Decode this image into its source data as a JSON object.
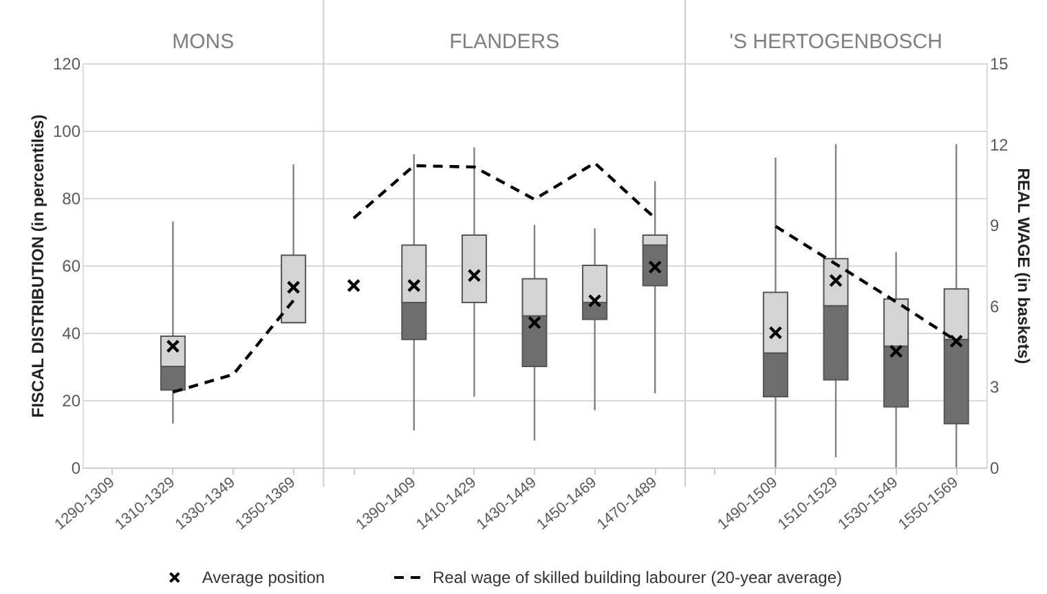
{
  "chart_data": {
    "type": "box",
    "annotations": [
      "MONS",
      "FLANDERS",
      "'S HERTOGENBOSCH"
    ],
    "categories": [
      "1290-1309",
      "1310-1329",
      "1330-1349",
      "1350-1369",
      null,
      "1390-1409",
      "1410-1429",
      "1430-1449",
      "1450-1469",
      "1470-1489",
      null,
      "1490-1509",
      "1510-1529",
      "1530-1549",
      "1550-1569"
    ],
    "series": [
      {
        "colors": [
          null,
          [
            "#6e6e6e",
            "#d4d4d4"
          ],
          null,
          [
            "#6e6e6e",
            "#d4d4d4"
          ],
          null,
          [
            "#6e6e6e",
            "#d4d4d4"
          ],
          [
            "#6e6e6e",
            "#d4d4d4"
          ],
          [
            "#6e6e6e",
            "#d4d4d4"
          ],
          [
            "#6e6e6e",
            "#d4d4d4"
          ],
          [
            "#6e6e6e",
            "#d4d4d4"
          ],
          null,
          [
            "#6e6e6e",
            "#d4d4d4"
          ],
          [
            "#6e6e6e",
            "#d4d4d4"
          ],
          [
            "#6e6e6e",
            "#d4d4d4"
          ],
          [
            "#6e6e6e",
            "#d4d4d4"
          ]
        ],
        "boxes": [
          null,
          {
            "low": 13,
            "q1": 23,
            "median": 30,
            "q3": 39,
            "high": 73
          },
          null,
          {
            "low": 43,
            "q1": 43,
            "median": 43,
            "q3": 63,
            "high": 90
          },
          null,
          {
            "low": 11,
            "q1": 38,
            "median": 49,
            "q3": 66,
            "high": 93
          },
          {
            "low": 21,
            "q1": 49,
            "median": 49,
            "q3": 69,
            "high": 95
          },
          {
            "low": 8,
            "q1": 30,
            "median": 45,
            "q3": 56,
            "high": 72
          },
          {
            "low": 17,
            "q1": 44,
            "median": 49,
            "q3": 60,
            "high": 71
          },
          {
            "low": 22,
            "q1": 54,
            "median": 66,
            "q3": 69,
            "high": 85
          },
          null,
          {
            "low": 0,
            "q1": 21,
            "median": 34,
            "q3": 52,
            "high": 92
          },
          {
            "low": 3,
            "q1": 26,
            "median": 48,
            "q3": 62,
            "high": 96
          },
          {
            "low": 0,
            "q1": 18,
            "median": 36,
            "q3": 50,
            "high": 64
          },
          {
            "low": 0,
            "q1": 13,
            "median": 38,
            "q3": 53,
            "high": 96
          }
        ]
      },
      {
        "type": "scatter",
        "name": "Average position",
        "color": "#000000",
        "marker": "cross",
        "values": [
          null,
          36,
          null,
          53.5,
          54,
          54,
          57,
          43,
          49.5,
          59.5,
          null,
          40,
          55.5,
          34.5,
          37.5
        ]
      },
      {
        "type": "line",
        "name": "Real wage of skilled building labourer (20-year average)",
        "color": "#000000",
        "axis": "y2",
        "line_style": "dashed",
        "values": [
          null,
          2.8,
          3.45,
          6.2,
          9.25,
          11.2,
          11.15,
          9.95,
          11.3,
          9.25,
          null,
          8.95,
          7.55,
          6.15,
          4.7
        ]
      }
    ],
    "ylabel": "FISCAL DISTRIBUTION (in percentiles)",
    "y2label": "REAL WAGE (in baskets)",
    "ylim": [
      0,
      120
    ],
    "yticks": [
      0,
      20,
      40,
      60,
      80,
      100,
      120
    ],
    "y2lim": [
      0,
      15
    ],
    "y2ticks": [
      0,
      3,
      6,
      9,
      12,
      15
    ],
    "grid": "y",
    "legend": "bottom"
  }
}
